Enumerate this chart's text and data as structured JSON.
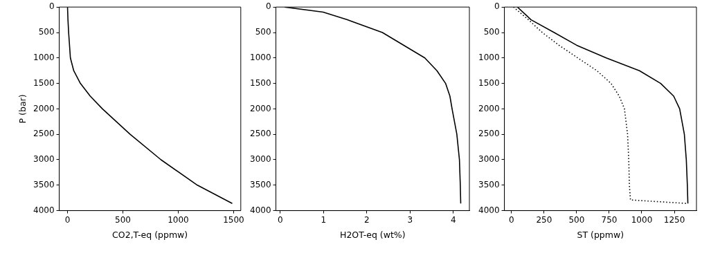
{
  "chart_data": [
    {
      "type": "line",
      "xlabel": "CO2,T-eq (ppmw)",
      "ylabel": "P (bar)",
      "xlim": [
        -75,
        1565
      ],
      "xticks": [
        0,
        500,
        1000,
        1500
      ],
      "ylim": [
        4000,
        0
      ],
      "yticks": [
        0,
        500,
        1000,
        1500,
        2000,
        2500,
        3000,
        3500,
        4000
      ],
      "grid": false,
      "series": [
        {
          "color": "#000000",
          "line_style": "solid",
          "x": [
            0,
            4,
            10,
            26,
            56,
            116,
            205,
            315,
            565,
            844,
            1173,
            1488
          ],
          "values": [
            0,
            250,
            500,
            1000,
            1250,
            1500,
            1750,
            2000,
            2500,
            3000,
            3500,
            3860
          ]
        }
      ]
    },
    {
      "type": "line",
      "xlabel": "H2OT-eq (wt%)",
      "xlim": [
        -0.1,
        4.37
      ],
      "xticks": [
        0,
        1,
        2,
        3,
        4
      ],
      "ylim": [
        4000,
        0
      ],
      "yticks": [
        0,
        500,
        1000,
        1500,
        2000,
        2500,
        3000,
        3500,
        4000
      ],
      "grid": false,
      "series": [
        {
          "color": "#000000",
          "line_style": "solid",
          "x": [
            0.1,
            0.99,
            1.55,
            2.36,
            3.34,
            3.62,
            3.82,
            3.92,
            3.97,
            4.08,
            4.14,
            4.16,
            4.17
          ],
          "values": [
            0,
            100,
            250,
            500,
            1000,
            1250,
            1500,
            1750,
            2000,
            2500,
            3000,
            3500,
            3860
          ]
        }
      ]
    },
    {
      "type": "line",
      "xlabel": "ST (ppmw)",
      "xlim": [
        -55,
        1420
      ],
      "xticks": [
        0,
        250,
        500,
        750,
        1000,
        1250
      ],
      "ylim": [
        4000,
        0
      ],
      "yticks": [
        0,
        500,
        1000,
        1500,
        2000,
        2500,
        3000,
        3500,
        4000
      ],
      "grid": false,
      "series": [
        {
          "color": "#000000",
          "line_style": "solid",
          "x": [
            45,
            150,
            327,
            500,
            727,
            982,
            1145,
            1245,
            1291,
            1327,
            1342,
            1350,
            1354
          ],
          "values": [
            0,
            250,
            500,
            750,
            1000,
            1250,
            1500,
            1750,
            2000,
            2500,
            3000,
            3500,
            3860
          ]
        },
        {
          "color": "#000000",
          "line_style": "dotted",
          "x": [
            15,
            130,
            236,
            364,
            509,
            655,
            764,
            827,
            867,
            891,
            900,
            905,
            913,
            1354
          ],
          "values": [
            0,
            250,
            500,
            750,
            1000,
            1250,
            1500,
            1750,
            2000,
            2500,
            3000,
            3500,
            3790,
            3860
          ]
        }
      ]
    }
  ]
}
